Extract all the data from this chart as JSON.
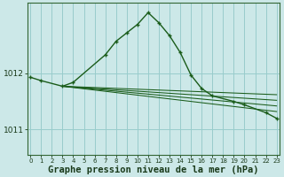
{
  "xlabel": "Graphe pression niveau de la mer (hPa)",
  "bg_color": "#cce8e8",
  "grid_color": "#99cccc",
  "line_color": "#1a5c1a",
  "ylim": [
    1010.55,
    1013.25
  ],
  "yticks": [
    1011,
    1012
  ],
  "xlim": [
    -0.3,
    23.3
  ],
  "tick_fontsize": 6.5,
  "xlabel_fontsize": 7.5,
  "main_x": [
    0,
    1,
    3,
    4,
    7,
    8,
    9,
    10,
    11,
    12,
    13,
    14,
    15,
    16,
    17,
    19,
    20,
    22,
    23
  ],
  "main_y": [
    1011.93,
    1011.87,
    1011.77,
    1011.84,
    1012.33,
    1012.57,
    1012.72,
    1012.87,
    1013.08,
    1012.9,
    1012.67,
    1012.37,
    1011.97,
    1011.73,
    1011.6,
    1011.5,
    1011.44,
    1011.3,
    1011.2
  ],
  "trend_lines": [
    {
      "x": [
        3,
        23
      ],
      "y": [
        1011.77,
        1011.62
      ]
    },
    {
      "x": [
        3,
        23
      ],
      "y": [
        1011.77,
        1011.52
      ]
    },
    {
      "x": [
        3,
        23
      ],
      "y": [
        1011.77,
        1011.42
      ]
    },
    {
      "x": [
        3,
        23
      ],
      "y": [
        1011.77,
        1011.32
      ]
    }
  ]
}
